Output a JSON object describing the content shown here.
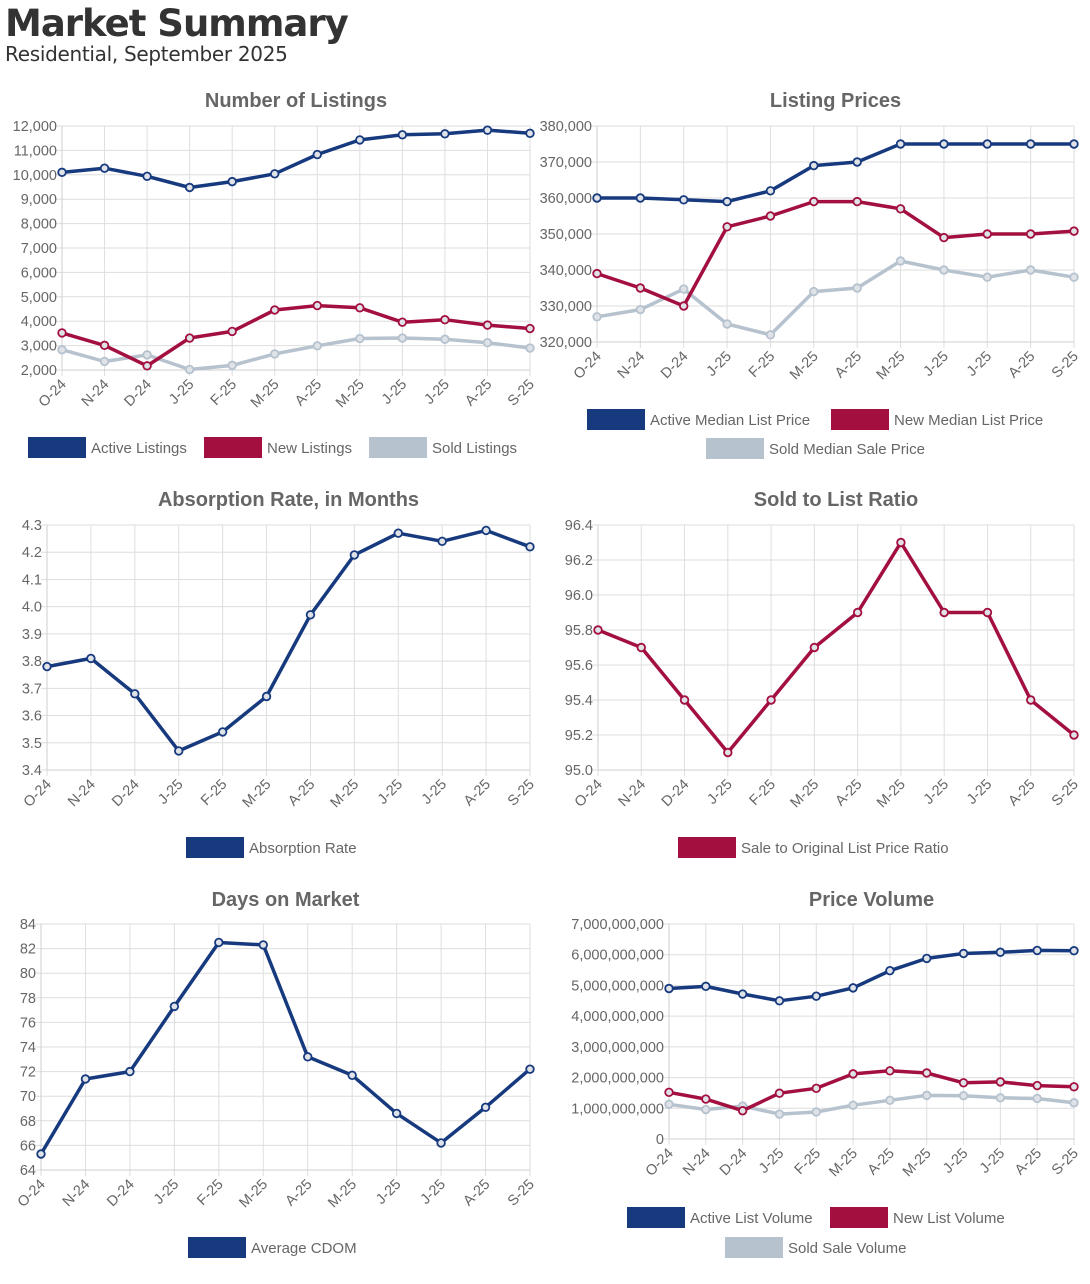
{
  "page": {
    "title": "Market Summary",
    "subtitle": "Residential, September 2025"
  },
  "colors": {
    "navy": "#173a7f",
    "crimson": "#a3103f",
    "gray": "#b6c2ce"
  },
  "chart_data": [
    {
      "id": "listings",
      "type": "line",
      "title": "Number of Listings",
      "categories": [
        "O-24",
        "N-24",
        "D-24",
        "J-25",
        "F-25",
        "M-25",
        "A-25",
        "M-25",
        "J-25",
        "J-25",
        "A-25",
        "S-25"
      ],
      "ylim": [
        2000,
        12000
      ],
      "yticks": [
        2000,
        3000,
        4000,
        5000,
        6000,
        7000,
        8000,
        9000,
        10000,
        11000,
        12000
      ],
      "ytick_labels": [
        "2,000",
        "3,000",
        "4,000",
        "5,000",
        "6,000",
        "7,000",
        "8,000",
        "9,000",
        "10,000",
        "11,000",
        "12,000"
      ],
      "series": [
        {
          "name": "Active Listings",
          "color": "#173a7f",
          "values": [
            10100,
            10270,
            9940,
            9480,
            9720,
            10040,
            10830,
            11430,
            11640,
            11680,
            11830,
            11700
          ]
        },
        {
          "name": "New Listings",
          "color": "#a3103f",
          "values": [
            3520,
            3010,
            2170,
            3310,
            3580,
            4460,
            4640,
            4550,
            3960,
            4060,
            3840,
            3700
          ]
        },
        {
          "name": "Sold Listings",
          "color": "#b6c2ce",
          "values": [
            2830,
            2350,
            2620,
            2020,
            2190,
            2660,
            2990,
            3290,
            3310,
            3260,
            3120,
            2900
          ]
        }
      ]
    },
    {
      "id": "prices",
      "type": "line",
      "title": "Listing Prices",
      "categories": [
        "O-24",
        "N-24",
        "D-24",
        "J-25",
        "F-25",
        "M-25",
        "A-25",
        "M-25",
        "J-25",
        "J-25",
        "A-25",
        "S-25"
      ],
      "ylim": [
        320000,
        380000
      ],
      "yticks": [
        320000,
        330000,
        340000,
        350000,
        360000,
        370000,
        380000
      ],
      "ytick_labels": [
        "320,000",
        "330,000",
        "340,000",
        "350,000",
        "360,000",
        "370,000",
        "380,000"
      ],
      "series": [
        {
          "name": "Active Median List Price",
          "color": "#173a7f",
          "values": [
            360000,
            360000,
            359500,
            359000,
            362000,
            369000,
            370000,
            375000,
            375000,
            375000,
            375000,
            375000
          ]
        },
        {
          "name": "New Median List Price",
          "color": "#a3103f",
          "values": [
            339000,
            335000,
            330000,
            352000,
            355000,
            359000,
            359000,
            357000,
            349000,
            350000,
            350000,
            350800
          ]
        },
        {
          "name": "Sold Median Sale Price",
          "color": "#b6c2ce",
          "values": [
            327000,
            329000,
            334700,
            325000,
            322000,
            334000,
            335000,
            342500,
            340000,
            338000,
            340000,
            338000
          ]
        }
      ]
    },
    {
      "id": "absorption",
      "type": "line",
      "title": "Absorption Rate, in Months",
      "categories": [
        "O-24",
        "N-24",
        "D-24",
        "J-25",
        "F-25",
        "M-25",
        "A-25",
        "M-25",
        "J-25",
        "J-25",
        "A-25",
        "S-25"
      ],
      "ylim": [
        3.4,
        4.3
      ],
      "yticks": [
        3.4,
        3.5,
        3.6,
        3.7,
        3.8,
        3.9,
        4.0,
        4.1,
        4.2,
        4.3
      ],
      "ytick_labels": [
        "3.4",
        "3.5",
        "3.6",
        "3.7",
        "3.8",
        "3.9",
        "4.0",
        "4.1",
        "4.2",
        "4.3"
      ],
      "series": [
        {
          "name": "Absorption Rate",
          "color": "#173a7f",
          "values": [
            3.78,
            3.81,
            3.68,
            3.47,
            3.54,
            3.67,
            3.97,
            4.19,
            4.27,
            4.24,
            4.28,
            4.22
          ]
        }
      ]
    },
    {
      "id": "ratio",
      "type": "line",
      "title": "Sold to List Ratio",
      "categories": [
        "O-24",
        "N-24",
        "D-24",
        "J-25",
        "F-25",
        "M-25",
        "A-25",
        "M-25",
        "J-25",
        "J-25",
        "A-25",
        "S-25"
      ],
      "ylim": [
        95.0,
        96.4
      ],
      "yticks": [
        95.0,
        95.2,
        95.4,
        95.6,
        95.8,
        96.0,
        96.2,
        96.4
      ],
      "ytick_labels": [
        "95.0",
        "95.2",
        "95.4",
        "95.6",
        "95.8",
        "96.0",
        "96.2",
        "96.4"
      ],
      "series": [
        {
          "name": "Sale to Original List Price Ratio",
          "color": "#a3103f",
          "values": [
            95.8,
            95.7,
            95.4,
            95.1,
            95.4,
            95.7,
            95.9,
            96.3,
            95.9,
            95.9,
            95.4,
            95.2
          ]
        }
      ]
    },
    {
      "id": "dom",
      "type": "line",
      "title": "Days on Market",
      "categories": [
        "O-24",
        "N-24",
        "D-24",
        "J-25",
        "F-25",
        "M-25",
        "A-25",
        "M-25",
        "J-25",
        "J-25",
        "A-25",
        "S-25"
      ],
      "ylim": [
        64,
        84
      ],
      "yticks": [
        64,
        66,
        68,
        70,
        72,
        74,
        76,
        78,
        80,
        82,
        84
      ],
      "ytick_labels": [
        "64",
        "66",
        "68",
        "70",
        "72",
        "74",
        "76",
        "78",
        "80",
        "82",
        "84"
      ],
      "series": [
        {
          "name": "Average CDOM",
          "color": "#173a7f",
          "values": [
            65.3,
            71.4,
            72.0,
            77.3,
            82.5,
            82.3,
            73.2,
            71.7,
            68.6,
            66.2,
            69.1,
            72.2
          ]
        }
      ]
    },
    {
      "id": "volume",
      "type": "line",
      "title": "Price Volume",
      "categories": [
        "O-24",
        "N-24",
        "D-24",
        "J-25",
        "F-25",
        "M-25",
        "A-25",
        "M-25",
        "J-25",
        "J-25",
        "A-25",
        "S-25"
      ],
      "ylim": [
        0,
        7000000000
      ],
      "yticks": [
        0,
        1000000000,
        2000000000,
        3000000000,
        4000000000,
        5000000000,
        6000000000,
        7000000000
      ],
      "ytick_labels": [
        "0",
        "1,000,000,000",
        "2,000,000,000",
        "3,000,000,000",
        "4,000,000,000",
        "5,000,000,000",
        "6,000,000,000",
        "7,000,000,000"
      ],
      "series": [
        {
          "name": "Active List Volume",
          "color": "#173a7f",
          "values": [
            4900000000,
            4970000000,
            4720000000,
            4500000000,
            4650000000,
            4920000000,
            5480000000,
            5880000000,
            6040000000,
            6080000000,
            6140000000,
            6130000000
          ]
        },
        {
          "name": "New List Volume",
          "color": "#a3103f",
          "values": [
            1520000000,
            1300000000,
            920000000,
            1490000000,
            1650000000,
            2120000000,
            2220000000,
            2150000000,
            1830000000,
            1860000000,
            1740000000,
            1700000000
          ]
        },
        {
          "name": "Sold Sale Volume",
          "color": "#b6c2ce",
          "values": [
            1130000000,
            960000000,
            1070000000,
            810000000,
            880000000,
            1100000000,
            1260000000,
            1420000000,
            1410000000,
            1340000000,
            1320000000,
            1180000000
          ]
        }
      ]
    }
  ]
}
